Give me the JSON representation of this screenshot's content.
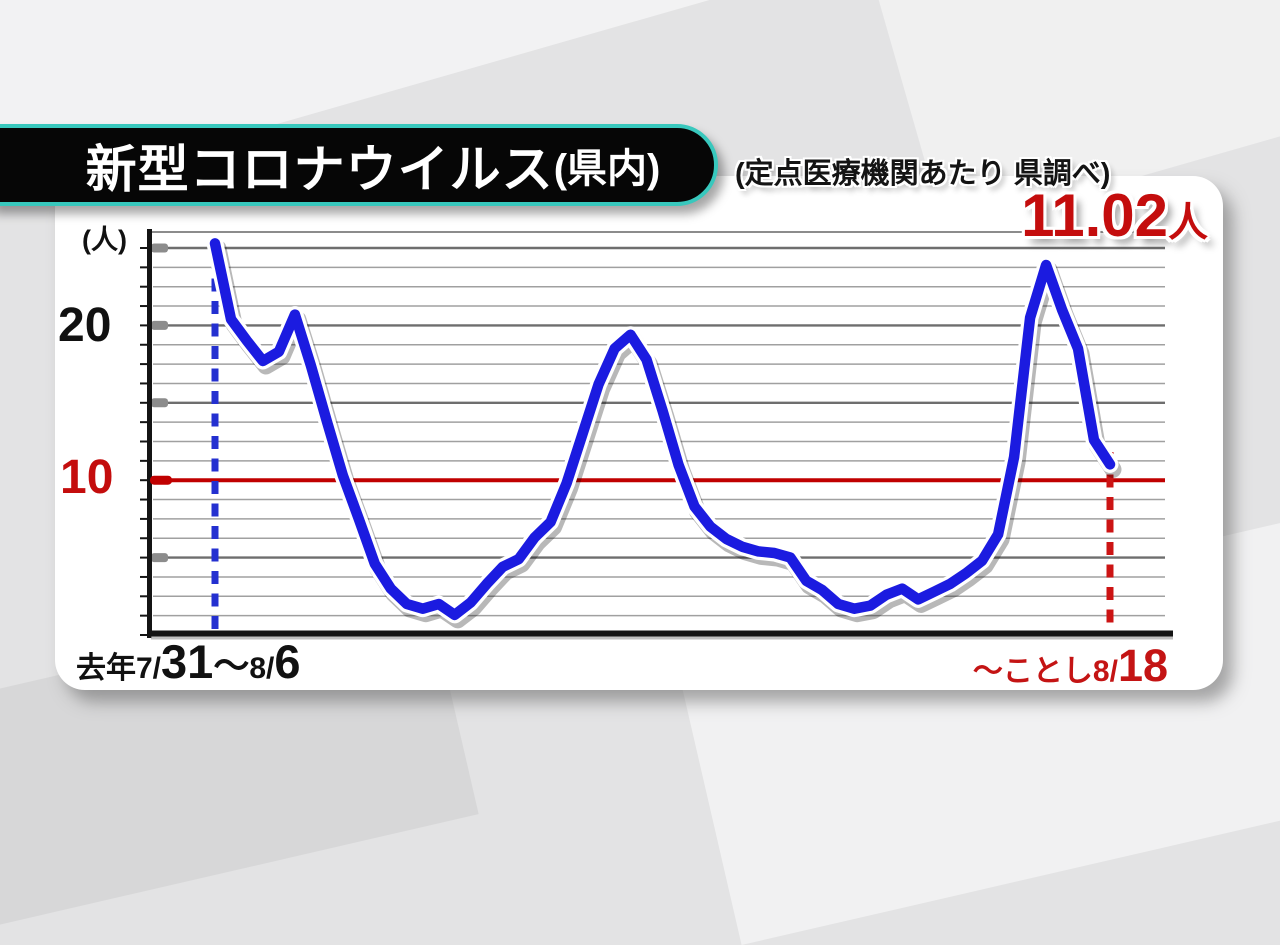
{
  "header": {
    "title_main": "新型コロナウイルス",
    "title_suffix": "(県内)",
    "note": "(定点医療機関あたり 県調べ)"
  },
  "callout": {
    "value": "11.02",
    "unit": "人"
  },
  "yaxis": {
    "unit": "(人)",
    "tick20": "20",
    "tick10": "10"
  },
  "xaxis": {
    "left": {
      "p1": "去年7/",
      "p2": "31",
      "p3": "〜",
      "p4": "8/",
      "p5": "6"
    },
    "right": {
      "p1": "〜ことし8/",
      "p2": "18"
    }
  },
  "colors": {
    "line_blue": "#1b1be0",
    "red": "#c00000",
    "teal": "#38c8bd",
    "grid_minor": "#a0a0a0",
    "grid_major": "#6e6e6e",
    "axis_black": "#141414"
  },
  "chart_data": {
    "type": "line",
    "title": "新型コロナウイルス(県内)",
    "subtitle": "(定点医療機関あたり 県調べ)",
    "ylabel": "(人)",
    "ylim": [
      0,
      26
    ],
    "y_ticks": [
      10,
      20
    ],
    "reference_line_y": 10,
    "grid": "horizontal",
    "legend": "none",
    "x_start_label": "去年7/31〜8/6",
    "x_end_label": "〜ことし8/18",
    "latest_value": 11.02,
    "values": [
      25.3,
      20.4,
      19.0,
      17.7,
      18.3,
      20.7,
      17.4,
      13.8,
      10.3,
      7.5,
      4.6,
      3.0,
      2.0,
      1.7,
      2.0,
      1.3,
      2.1,
      3.3,
      4.4,
      4.9,
      6.3,
      7.3,
      9.8,
      13.0,
      16.2,
      18.5,
      19.4,
      17.8,
      14.5,
      11.0,
      8.3,
      7.0,
      6.2,
      5.7,
      5.4,
      5.3,
      5.0,
      3.5,
      2.9,
      2.0,
      1.7,
      1.9,
      2.6,
      3.0,
      2.3,
      2.8,
      3.3,
      4.0,
      4.8,
      6.5,
      11.5,
      20.5,
      23.9,
      21.0,
      18.5,
      12.6,
      11.02
    ]
  }
}
